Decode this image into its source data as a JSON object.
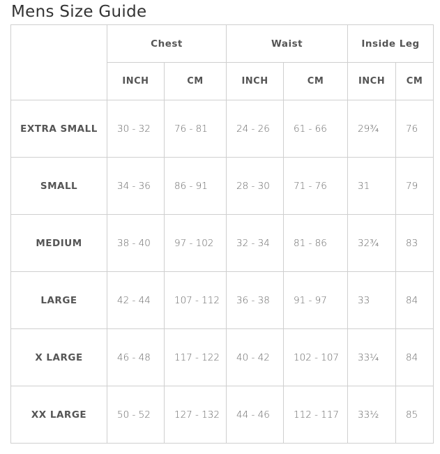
{
  "title": "Mens Size Guide",
  "groups": [
    "Chest",
    "Waist",
    "Inside Leg"
  ],
  "units": [
    "INCH",
    "CM",
    "INCH",
    "CM",
    "INCH",
    "CM"
  ],
  "rows": [
    {
      "size": "EXTRA SMALL",
      "values": [
        "30 - 32",
        "76 - 81",
        "24 - 26",
        "61 - 66",
        "29¾",
        "76"
      ]
    },
    {
      "size": "SMALL",
      "values": [
        "34 - 36",
        "86 - 91",
        "28 - 30",
        "71 - 76",
        "31",
        "79"
      ]
    },
    {
      "size": "MEDIUM",
      "values": [
        "38 - 40",
        "97 - 102",
        "32 - 34",
        "81 - 86",
        "32¾",
        "83"
      ]
    },
    {
      "size": "LARGE",
      "values": [
        "42 - 44",
        "107 - 112",
        "36 - 38",
        "91 - 97",
        "33",
        "84"
      ]
    },
    {
      "size": "X LARGE",
      "values": [
        "46 - 48",
        "117 - 122",
        "40 - 42",
        "102 - 107",
        "33¼",
        "84"
      ]
    },
    {
      "size": "XX LARGE",
      "values": [
        "50 - 52",
        "127 - 132",
        "44 - 46",
        "112 - 117",
        "33½",
        "85"
      ]
    }
  ]
}
